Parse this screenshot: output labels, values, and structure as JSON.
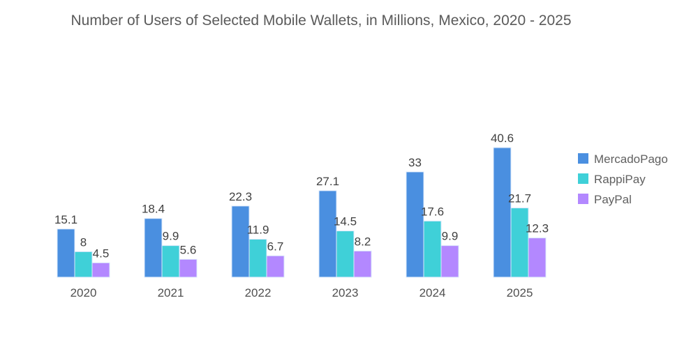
{
  "chart_data": {
    "type": "bar",
    "title": "Number of Users of Selected Mobile Wallets, in Millions, Mexico, 2020 - 2025",
    "xlabel": "",
    "ylabel": "",
    "categories": [
      "2020",
      "2021",
      "2022",
      "2023",
      "2024",
      "2025"
    ],
    "series": [
      {
        "name": "MercadoPago",
        "color": "#4a8fe0",
        "values": [
          15.1,
          18.4,
          22.3,
          27.1,
          33,
          40.6
        ]
      },
      {
        "name": "RappiPay",
        "color": "#3fd0d8",
        "values": [
          8,
          9.9,
          11.9,
          14.5,
          17.6,
          21.7
        ]
      },
      {
        "name": "PayPal",
        "color": "#b388ff",
        "values": [
          4.5,
          5.6,
          6.7,
          8.2,
          9.9,
          12.3
        ]
      }
    ],
    "ylim": [
      0,
      40.6
    ],
    "grid": false,
    "legend": "right",
    "data_labels": true
  }
}
